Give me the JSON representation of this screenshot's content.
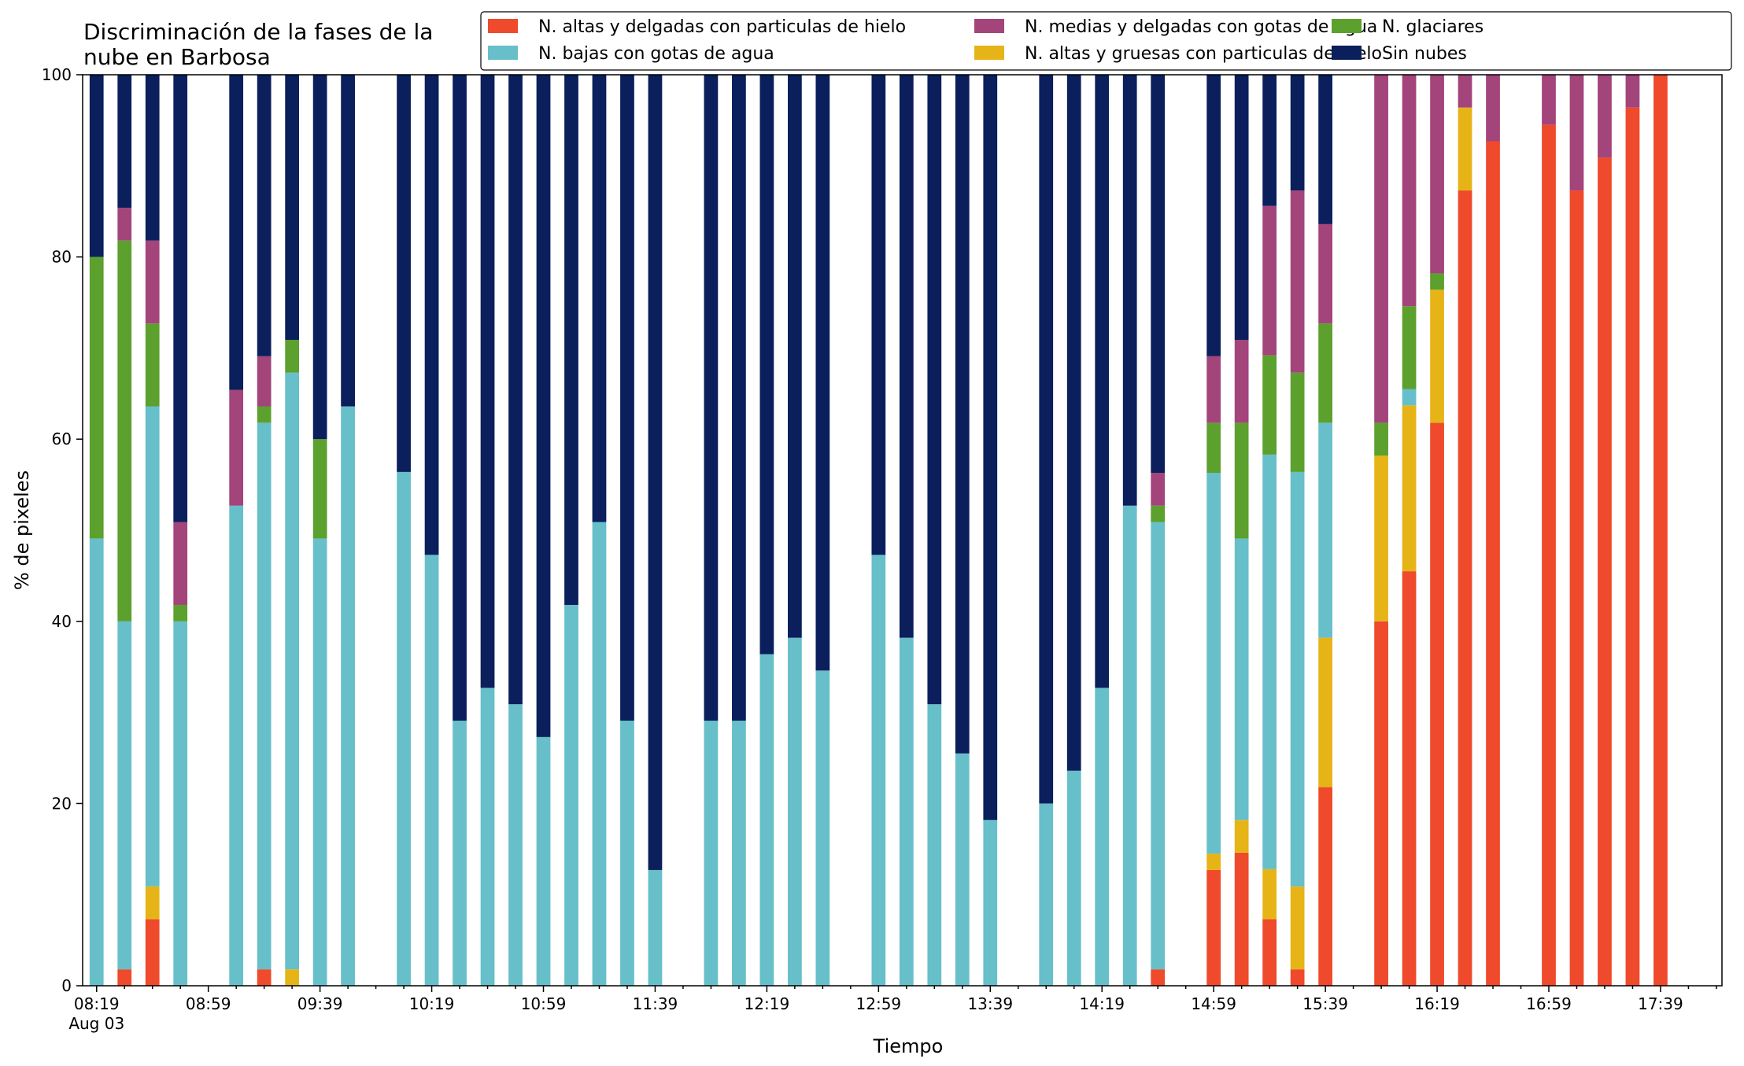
{
  "chart_data": {
    "type": "bar",
    "stacked": true,
    "title_lines": [
      "Discriminación de la fases de la",
      "nube en Barbosa"
    ],
    "xlabel": "Tiempo",
    "ylabel": "% de pixeles",
    "ylim": [
      0,
      100
    ],
    "yticks": [
      0,
      20,
      40,
      60,
      80,
      100
    ],
    "x_start": "08:19",
    "x_end": "17:59",
    "bar_interval_minutes": 10,
    "xtick_labels": [
      "08:19",
      "08:59",
      "09:39",
      "10:19",
      "10:59",
      "11:39",
      "12:19",
      "12:59",
      "13:39",
      "14:19",
      "14:59",
      "15:39",
      "16:19",
      "16:59",
      "17:39"
    ],
    "xtick_date_label": "Aug 03",
    "legend_position": "top-right",
    "grid": false,
    "series": [
      {
        "name": "N. altas y delgadas con particulas de hielo",
        "color": "#ee4a2b"
      },
      {
        "name": "N. altas y gruesas con particulas de hielo",
        "color": "#e6b417"
      },
      {
        "name": "N. bajas con gotas de agua",
        "color": "#67bfca"
      },
      {
        "name": "N. glaciares",
        "color": "#5ca02d"
      },
      {
        "name": "N. medias y delgadas con gotas de agua",
        "color": "#a3447b"
      },
      {
        "name": "Sin nubes",
        "color": "#0a1f5c"
      }
    ],
    "legend_order": [
      0,
      2,
      4,
      1,
      3,
      5
    ],
    "bars": [
      {
        "time": "08:19",
        "values": [
          0,
          0,
          49.1,
          30.9,
          0,
          20.0
        ]
      },
      {
        "time": "08:29",
        "values": [
          1.8,
          0,
          38.2,
          41.8,
          3.6,
          14.6
        ]
      },
      {
        "time": "08:39",
        "values": [
          7.3,
          3.6,
          52.7,
          9.1,
          9.1,
          18.2
        ]
      },
      {
        "time": "08:49",
        "values": [
          0,
          0,
          40.0,
          1.8,
          9.1,
          49.1
        ]
      },
      {
        "time": "09:09",
        "values": [
          0,
          0,
          52.7,
          0,
          12.7,
          34.6
        ]
      },
      {
        "time": "09:19",
        "values": [
          1.8,
          0,
          60.0,
          1.8,
          5.5,
          30.9
        ]
      },
      {
        "time": "09:29",
        "values": [
          0,
          1.8,
          65.5,
          3.6,
          0,
          29.1
        ]
      },
      {
        "time": "09:39",
        "values": [
          0,
          0,
          49.1,
          10.9,
          0,
          40.0
        ]
      },
      {
        "time": "09:49",
        "values": [
          0,
          0,
          63.6,
          0,
          0,
          36.4
        ]
      },
      {
        "time": "10:09",
        "values": [
          0,
          0,
          56.4,
          0,
          0,
          43.6
        ]
      },
      {
        "time": "10:19",
        "values": [
          0,
          0,
          47.3,
          0,
          0,
          52.7
        ]
      },
      {
        "time": "10:29",
        "values": [
          0,
          0,
          29.1,
          0,
          0,
          70.9
        ]
      },
      {
        "time": "10:39",
        "values": [
          0,
          0,
          32.7,
          0,
          0,
          67.3
        ]
      },
      {
        "time": "10:49",
        "values": [
          0,
          0,
          30.9,
          0,
          0,
          69.1
        ]
      },
      {
        "time": "10:59",
        "values": [
          0,
          0,
          27.3,
          0,
          0,
          72.7
        ]
      },
      {
        "time": "11:09",
        "values": [
          0,
          0,
          41.8,
          0,
          0,
          58.2
        ]
      },
      {
        "time": "11:19",
        "values": [
          0,
          0,
          50.9,
          0,
          0,
          49.1
        ]
      },
      {
        "time": "11:29",
        "values": [
          0,
          0,
          29.1,
          0,
          0,
          70.9
        ]
      },
      {
        "time": "11:39",
        "values": [
          0,
          0,
          12.7,
          0,
          0,
          87.3
        ]
      },
      {
        "time": "11:59",
        "values": [
          0,
          0,
          29.1,
          0,
          0,
          70.9
        ]
      },
      {
        "time": "12:09",
        "values": [
          0,
          0,
          29.1,
          0,
          0,
          70.9
        ]
      },
      {
        "time": "12:19",
        "values": [
          0,
          0,
          36.4,
          0,
          0,
          63.6
        ]
      },
      {
        "time": "12:29",
        "values": [
          0,
          0,
          38.2,
          0,
          0,
          61.8
        ]
      },
      {
        "time": "12:39",
        "values": [
          0,
          0,
          34.6,
          0,
          0,
          65.4
        ]
      },
      {
        "time": "12:59",
        "values": [
          0,
          0,
          47.3,
          0,
          0,
          52.7
        ]
      },
      {
        "time": "13:09",
        "values": [
          0,
          0,
          38.2,
          0,
          0,
          61.8
        ]
      },
      {
        "time": "13:19",
        "values": [
          0,
          0,
          30.9,
          0,
          0,
          69.1
        ]
      },
      {
        "time": "13:29",
        "values": [
          0,
          0,
          25.5,
          0,
          0,
          74.5
        ]
      },
      {
        "time": "13:39",
        "values": [
          0,
          0,
          18.2,
          0,
          0,
          81.8
        ]
      },
      {
        "time": "13:59",
        "values": [
          0,
          0,
          20.0,
          0,
          0,
          80.0
        ]
      },
      {
        "time": "14:09",
        "values": [
          0,
          0,
          23.6,
          0,
          0,
          76.4
        ]
      },
      {
        "time": "14:19",
        "values": [
          0,
          0,
          32.7,
          0,
          0,
          67.3
        ]
      },
      {
        "time": "14:29",
        "values": [
          0,
          0,
          52.7,
          0,
          0,
          47.3
        ]
      },
      {
        "time": "14:39",
        "values": [
          1.8,
          0,
          49.1,
          1.8,
          3.6,
          43.7
        ]
      },
      {
        "time": "14:59",
        "values": [
          12.7,
          1.8,
          41.8,
          5.5,
          7.3,
          30.9
        ]
      },
      {
        "time": "15:09",
        "values": [
          14.6,
          3.6,
          30.9,
          12.7,
          9.1,
          29.1
        ]
      },
      {
        "time": "15:19",
        "values": [
          7.3,
          5.5,
          45.5,
          10.9,
          16.4,
          14.4
        ]
      },
      {
        "time": "15:29",
        "values": [
          1.8,
          9.1,
          45.5,
          10.9,
          20.0,
          12.7
        ]
      },
      {
        "time": "15:39",
        "values": [
          21.8,
          16.4,
          23.6,
          10.9,
          10.9,
          16.4
        ]
      },
      {
        "time": "15:59",
        "values": [
          40.0,
          18.2,
          0,
          3.6,
          38.2,
          0
        ]
      },
      {
        "time": "16:09",
        "values": [
          45.5,
          18.2,
          1.8,
          9.1,
          25.4,
          0
        ]
      },
      {
        "time": "16:19",
        "values": [
          61.8,
          14.6,
          0,
          1.8,
          21.8,
          0
        ]
      },
      {
        "time": "16:29",
        "values": [
          87.3,
          9.1,
          0,
          0,
          3.6,
          0
        ]
      },
      {
        "time": "16:39",
        "values": [
          92.7,
          0,
          0,
          0,
          7.3,
          0
        ]
      },
      {
        "time": "16:59",
        "values": [
          94.5,
          0,
          0,
          0,
          5.5,
          0
        ]
      },
      {
        "time": "17:09",
        "values": [
          87.3,
          0,
          0,
          0,
          12.7,
          0
        ]
      },
      {
        "time": "17:19",
        "values": [
          90.9,
          0,
          0,
          0,
          9.1,
          0
        ]
      },
      {
        "time": "17:29",
        "values": [
          96.4,
          0,
          0,
          0,
          3.6,
          0
        ]
      },
      {
        "time": "17:39",
        "values": [
          100,
          0,
          0,
          0,
          0,
          0
        ]
      }
    ]
  }
}
